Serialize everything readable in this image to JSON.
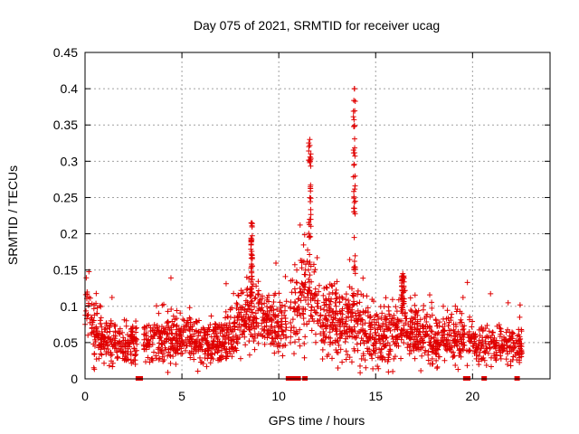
{
  "chart_data": {
    "type": "scatter",
    "title": "Day 075 of 2021, SRMTID for receiver ucag",
    "xlabel": "GPS time / hours",
    "ylabel": "SRMTID / TECUs",
    "xlim": [
      0,
      24
    ],
    "ylim": [
      0,
      0.45
    ],
    "xticks": [
      0,
      5,
      10,
      15,
      20
    ],
    "yticks": [
      0,
      0.05,
      0.1,
      0.15,
      0.2,
      0.25,
      0.3,
      0.35,
      0.4,
      0.45
    ],
    "ytick_labels": [
      "0",
      "0.05",
      "0.1",
      "0.15",
      "0.2",
      "0.25",
      "0.3",
      "0.35",
      "0.4",
      "0.45"
    ],
    "xtick_labels": [
      "0",
      "5",
      "10",
      "15",
      "20"
    ],
    "grid": true,
    "marker": "+",
    "color": "#e00000",
    "seed": 75,
    "base_profile": [
      {
        "x": 0.0,
        "y": 0.1,
        "s": 0.03
      },
      {
        "x": 0.5,
        "y": 0.07,
        "s": 0.025
      },
      {
        "x": 1.0,
        "y": 0.05,
        "s": 0.015
      },
      {
        "x": 2.5,
        "y": 0.05,
        "s": 0.015
      },
      {
        "x": 4.0,
        "y": 0.055,
        "s": 0.017
      },
      {
        "x": 5.5,
        "y": 0.055,
        "s": 0.017
      },
      {
        "x": 6.5,
        "y": 0.045,
        "s": 0.015
      },
      {
        "x": 7.5,
        "y": 0.06,
        "s": 0.018
      },
      {
        "x": 8.5,
        "y": 0.09,
        "s": 0.025
      },
      {
        "x": 9.5,
        "y": 0.08,
        "s": 0.02
      },
      {
        "x": 10.5,
        "y": 0.07,
        "s": 0.02
      },
      {
        "x": 11.0,
        "y": 0.12,
        "s": 0.04
      },
      {
        "x": 12.0,
        "y": 0.09,
        "s": 0.03
      },
      {
        "x": 13.0,
        "y": 0.075,
        "s": 0.025
      },
      {
        "x": 14.0,
        "y": 0.08,
        "s": 0.025
      },
      {
        "x": 15.0,
        "y": 0.06,
        "s": 0.02
      },
      {
        "x": 16.5,
        "y": 0.065,
        "s": 0.022
      },
      {
        "x": 18.0,
        "y": 0.055,
        "s": 0.018
      },
      {
        "x": 19.5,
        "y": 0.055,
        "s": 0.017
      },
      {
        "x": 20.5,
        "y": 0.045,
        "s": 0.013
      },
      {
        "x": 22.5,
        "y": 0.045,
        "s": 0.013
      }
    ],
    "segments": [
      {
        "x0": 0.0,
        "x1": 2.7,
        "n": 260
      },
      {
        "x0": 3.0,
        "x1": 10.4,
        "n": 760
      },
      {
        "x0": 10.6,
        "x1": 19.6,
        "n": 900
      },
      {
        "x0": 19.7,
        "x1": 22.6,
        "n": 230
      }
    ],
    "spikes": [
      {
        "x": 8.6,
        "y_max": 0.215,
        "spread": 0.08
      },
      {
        "x": 11.6,
        "y_max": 0.33,
        "spread": 0.12
      },
      {
        "x": 13.9,
        "y_max": 0.4,
        "spread": 0.1
      },
      {
        "x": 16.4,
        "y_max": 0.145,
        "spread": 0.15
      }
    ],
    "zero_markers": [
      2.75,
      2.85,
      10.5,
      10.6,
      10.85,
      11.0,
      11.35,
      19.65,
      19.75,
      20.6,
      22.3
    ]
  }
}
